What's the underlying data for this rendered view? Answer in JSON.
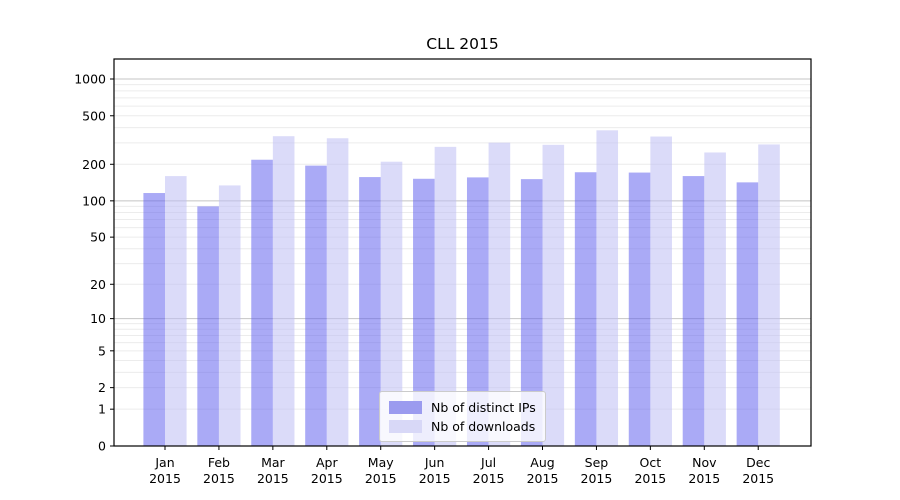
{
  "chart_data": {
    "type": "bar",
    "title": "CLL 2015",
    "categories": [
      "Jan 2015",
      "Feb 2015",
      "Mar 2015",
      "Apr 2015",
      "May 2015",
      "Jun 2015",
      "Jul 2015",
      "Aug 2015",
      "Sep 2015",
      "Oct 2015",
      "Nov 2015",
      "Dec 2015"
    ],
    "series": [
      {
        "name": "Nb of distinct IPs",
        "values": [
          116,
          90,
          218,
          195,
          157,
          152,
          156,
          151,
          172,
          171,
          160,
          142
        ],
        "bar_color": "rgba(100,100,238,0.55)",
        "legend_color": "#9b9bef"
      },
      {
        "name": "Nb of downloads",
        "values": [
          160,
          134,
          340,
          327,
          210,
          278,
          301,
          289,
          380,
          338,
          250,
          291
        ],
        "bar_color": "rgba(190,190,244,0.55)",
        "legend_color": "#d8d8f7"
      }
    ],
    "xlabel": "",
    "ylabel": "",
    "yscale": "log1p",
    "ylim": [
      0,
      1413
    ],
    "yticks": [
      0,
      1,
      2,
      5,
      10,
      20,
      50,
      100,
      200,
      500,
      1000
    ],
    "grid": {
      "on": true,
      "minor_values": [
        1,
        2,
        3,
        4,
        5,
        6,
        7,
        8,
        9,
        20,
        30,
        40,
        50,
        60,
        70,
        80,
        90,
        200,
        300,
        400,
        500,
        600,
        700,
        800,
        900
      ],
      "major_values": [
        10,
        100,
        1000
      ],
      "minor_color": "#ececec",
      "major_color": "#c4c4c4"
    },
    "legend": {
      "location": "lower center",
      "entries": [
        "Nb of distinct IPs",
        "Nb of downloads"
      ]
    }
  }
}
